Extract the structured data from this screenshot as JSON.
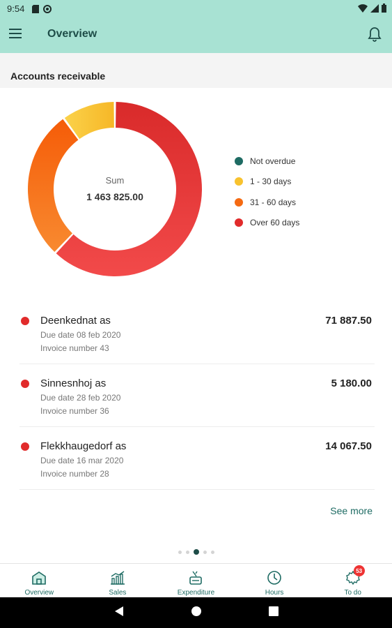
{
  "status": {
    "time": "9:54"
  },
  "app_bar": {
    "title": "Overview"
  },
  "section": {
    "title": "Accounts receivable"
  },
  "chart_data": {
    "type": "pie",
    "variant": "donut",
    "center_label": "Sum",
    "center_value": "1 463 825.00",
    "series": [
      {
        "name": "Not overdue",
        "value": 0,
        "color": "#1e6b63"
      },
      {
        "name": "1 - 30 days",
        "value": 10,
        "color": "#f8c22e"
      },
      {
        "name": "31 - 60 days",
        "value": 28,
        "color": "#f56a12"
      },
      {
        "name": "Over 60 days",
        "value": 62,
        "color": "#e12b2b"
      }
    ],
    "legend_position": "right"
  },
  "invoices": [
    {
      "name": "Deenkednat as",
      "due": "Due date 08 feb 2020",
      "number": "Invoice number 43",
      "amount": "71 887.50",
      "status_color": "#e12b2b"
    },
    {
      "name": "Sinnesnhoj as",
      "due": "Due date 28 feb 2020",
      "number": "Invoice number 36",
      "amount": "5 180.00",
      "status_color": "#e12b2b"
    },
    {
      "name": "Flekkhaugedorf as",
      "due": "Due date 16 mar 2020",
      "number": "Invoice number 28",
      "amount": "14 067.50",
      "status_color": "#e12b2b"
    }
  ],
  "see_more": "See more",
  "pager": {
    "count": 5,
    "active": 2
  },
  "bottom_nav": [
    {
      "label": "Overview",
      "icon": "home-icon"
    },
    {
      "label": "Sales",
      "icon": "chart-icon"
    },
    {
      "label": "Expenditure",
      "icon": "expenditure-icon"
    },
    {
      "label": "Hours",
      "icon": "clock-icon"
    },
    {
      "label": "To do",
      "icon": "todo-icon",
      "badge": "53"
    }
  ],
  "colors": {
    "accent": "#a8e2d3",
    "primary_dark": "#1e4d48",
    "link": "#1e6b63"
  }
}
